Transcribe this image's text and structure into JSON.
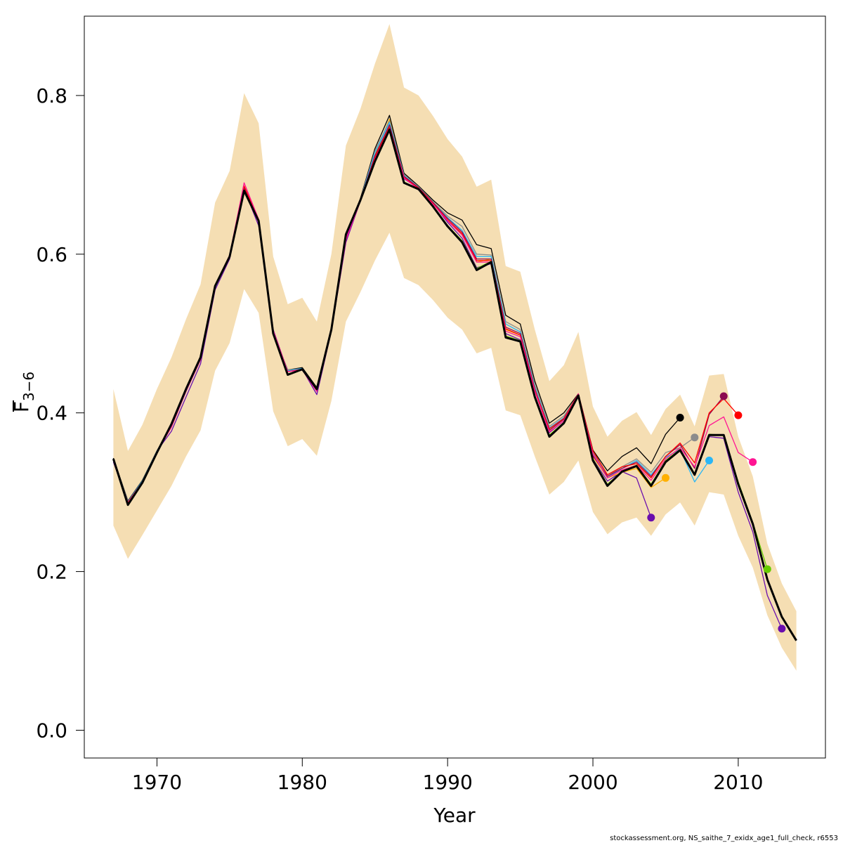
{
  "chart_data": {
    "type": "line",
    "xlabel": "Year",
    "ylabel": {
      "main": "F",
      "sub": "3−6"
    },
    "footer": "stockassessment.org, NS_saithe_7_exidx_age1_full_check, r6553",
    "xlim": [
      1965,
      2016
    ],
    "ylim": [
      -0.035,
      0.9
    ],
    "x_ticks": [
      1970,
      1980,
      1990,
      2000,
      2010
    ],
    "y_ticks": [
      0.0,
      0.2,
      0.4,
      0.6,
      0.8
    ],
    "y_tick_labels": [
      "0.0",
      "0.2",
      "0.4",
      "0.6",
      "0.8"
    ],
    "band_color": "#f5deb3",
    "years": [
      1967,
      1968,
      1969,
      1970,
      1971,
      1972,
      1973,
      1974,
      1975,
      1976,
      1977,
      1978,
      1979,
      1980,
      1981,
      1982,
      1983,
      1984,
      1985,
      1986,
      1987,
      1988,
      1989,
      1990,
      1991,
      1992,
      1993,
      1994,
      1995,
      1996,
      1997,
      1998,
      1999,
      2000,
      2001,
      2002,
      2003,
      2004,
      2005,
      2006,
      2007,
      2008,
      2009,
      2010,
      2011,
      2012,
      2013,
      2014
    ],
    "confidence_band": {
      "upper": [
        0.43,
        0.352,
        0.385,
        0.43,
        0.47,
        0.518,
        0.562,
        0.665,
        0.705,
        0.803,
        0.765,
        0.597,
        0.537,
        0.545,
        0.515,
        0.6,
        0.737,
        0.783,
        0.84,
        0.89,
        0.81,
        0.8,
        0.774,
        0.745,
        0.723,
        0.685,
        0.694,
        0.585,
        0.578,
        0.505,
        0.44,
        0.46,
        0.502,
        0.408,
        0.37,
        0.39,
        0.401,
        0.372,
        0.405,
        0.423,
        0.383,
        0.447,
        0.449,
        0.37,
        0.32,
        0.235,
        0.185,
        0.15
      ],
      "lower": [
        0.258,
        0.216,
        0.246,
        0.277,
        0.308,
        0.345,
        0.378,
        0.453,
        0.488,
        0.556,
        0.526,
        0.402,
        0.358,
        0.367,
        0.346,
        0.415,
        0.515,
        0.552,
        0.592,
        0.627,
        0.57,
        0.561,
        0.542,
        0.52,
        0.505,
        0.475,
        0.482,
        0.403,
        0.397,
        0.345,
        0.297,
        0.313,
        0.34,
        0.275,
        0.247,
        0.262,
        0.268,
        0.245,
        0.272,
        0.287,
        0.258,
        0.3,
        0.297,
        0.245,
        0.205,
        0.145,
        0.104,
        0.075
      ]
    },
    "series": [
      {
        "color": "#000000",
        "width": 3,
        "values": [
          0.342,
          0.284,
          0.312,
          0.35,
          0.386,
          0.43,
          0.47,
          0.56,
          0.597,
          0.68,
          0.642,
          0.5,
          0.448,
          0.455,
          0.43,
          0.505,
          0.625,
          0.668,
          0.717,
          0.757,
          0.69,
          0.682,
          0.66,
          0.635,
          0.615,
          0.58,
          0.59,
          0.495,
          0.49,
          0.42,
          0.37,
          0.387,
          0.422,
          0.34,
          0.308,
          0.326,
          0.333,
          0.308,
          0.338,
          0.353,
          0.322,
          0.372,
          0.372,
          0.31,
          0.26,
          0.19,
          0.143,
          0.113
        ]
      },
      {
        "color": "#6a0dad",
        "width": 1.3,
        "values": [
          0.338,
          0.287,
          0.314,
          0.352,
          0.377,
          0.42,
          0.462,
          0.555,
          0.594,
          0.682,
          0.636,
          0.505,
          0.452,
          0.455,
          0.423,
          0.503,
          0.615,
          0.667,
          0.72,
          0.76,
          0.695,
          0.683,
          0.664,
          0.64,
          0.62,
          0.583,
          0.588,
          0.5,
          0.492,
          0.428,
          0.375,
          0.39,
          0.42,
          0.342,
          0.314,
          0.326,
          0.318,
          0.268
        ]
      },
      {
        "color": "#ffb000",
        "width": 1.3,
        "values": [
          0.342,
          0.288,
          0.314,
          0.352,
          0.382,
          0.427,
          0.467,
          0.558,
          0.596,
          0.681,
          0.64,
          0.503,
          0.452,
          0.456,
          0.428,
          0.505,
          0.622,
          0.668,
          0.725,
          0.77,
          0.7,
          0.684,
          0.664,
          0.643,
          0.625,
          0.59,
          0.594,
          0.505,
          0.498,
          0.43,
          0.378,
          0.392,
          0.422,
          0.345,
          0.318,
          0.325,
          0.33,
          0.306,
          0.318
        ]
      },
      {
        "color": "#000000",
        "width": 1.3,
        "values": [
          0.343,
          0.289,
          0.315,
          0.352,
          0.384,
          0.428,
          0.468,
          0.558,
          0.597,
          0.682,
          0.642,
          0.5,
          0.454,
          0.457,
          0.432,
          0.506,
          0.623,
          0.67,
          0.733,
          0.775,
          0.702,
          0.686,
          0.668,
          0.652,
          0.643,
          0.612,
          0.607,
          0.523,
          0.512,
          0.44,
          0.387,
          0.4,
          0.424,
          0.353,
          0.327,
          0.345,
          0.356,
          0.336,
          0.373,
          0.394
        ]
      },
      {
        "color": "#8c8c8c",
        "width": 1.3,
        "values": [
          0.342,
          0.288,
          0.314,
          0.352,
          0.383,
          0.427,
          0.468,
          0.559,
          0.597,
          0.683,
          0.641,
          0.5,
          0.454,
          0.456,
          0.431,
          0.505,
          0.622,
          0.669,
          0.73,
          0.768,
          0.7,
          0.685,
          0.666,
          0.648,
          0.635,
          0.6,
          0.599,
          0.515,
          0.505,
          0.435,
          0.383,
          0.396,
          0.423,
          0.35,
          0.32,
          0.332,
          0.342,
          0.325,
          0.35,
          0.356,
          0.369
        ]
      },
      {
        "color": "#29b6f6",
        "width": 1.3,
        "values": [
          0.342,
          0.288,
          0.314,
          0.352,
          0.383,
          0.427,
          0.468,
          0.558,
          0.597,
          0.682,
          0.641,
          0.5,
          0.453,
          0.456,
          0.43,
          0.505,
          0.622,
          0.668,
          0.728,
          0.766,
          0.699,
          0.684,
          0.665,
          0.646,
          0.63,
          0.597,
          0.597,
          0.512,
          0.502,
          0.432,
          0.381,
          0.394,
          0.423,
          0.348,
          0.318,
          0.33,
          0.34,
          0.322,
          0.344,
          0.354,
          0.313,
          0.34
        ]
      },
      {
        "color": "#8b0a50",
        "width": 1.3,
        "values": [
          0.342,
          0.287,
          0.313,
          0.351,
          0.383,
          0.428,
          0.468,
          0.559,
          0.598,
          0.684,
          0.642,
          0.502,
          0.452,
          0.455,
          0.429,
          0.504,
          0.62,
          0.668,
          0.724,
          0.763,
          0.698,
          0.684,
          0.665,
          0.645,
          0.628,
          0.594,
          0.594,
          0.508,
          0.5,
          0.43,
          0.378,
          0.392,
          0.423,
          0.346,
          0.32,
          0.33,
          0.338,
          0.32,
          0.345,
          0.36,
          0.33,
          0.398,
          0.421
        ]
      },
      {
        "color": "#ff0000",
        "width": 1.3,
        "values": [
          0.342,
          0.287,
          0.313,
          0.351,
          0.383,
          0.428,
          0.468,
          0.559,
          0.598,
          0.686,
          0.643,
          0.503,
          0.452,
          0.455,
          0.429,
          0.504,
          0.62,
          0.667,
          0.722,
          0.76,
          0.697,
          0.683,
          0.664,
          0.643,
          0.626,
          0.592,
          0.592,
          0.506,
          0.498,
          0.429,
          0.38,
          0.393,
          0.424,
          0.352,
          0.322,
          0.332,
          0.336,
          0.318,
          0.345,
          0.362,
          0.337,
          0.4,
          0.418,
          0.397
        ]
      },
      {
        "color": "#ff1493",
        "width": 1.3,
        "values": [
          0.341,
          0.286,
          0.313,
          0.351,
          0.382,
          0.427,
          0.467,
          0.56,
          0.599,
          0.69,
          0.644,
          0.504,
          0.452,
          0.454,
          0.427,
          0.503,
          0.618,
          0.667,
          0.72,
          0.758,
          0.696,
          0.682,
          0.663,
          0.642,
          0.624,
          0.59,
          0.59,
          0.503,
          0.496,
          0.427,
          0.376,
          0.39,
          0.424,
          0.348,
          0.318,
          0.328,
          0.334,
          0.315,
          0.342,
          0.356,
          0.332,
          0.384,
          0.395,
          0.35,
          0.338
        ]
      },
      {
        "color": "#66cc00",
        "width": 1.3,
        "values": [
          0.342,
          0.285,
          0.313,
          0.351,
          0.385,
          0.429,
          0.469,
          0.56,
          0.597,
          0.681,
          0.642,
          0.5,
          0.449,
          0.455,
          0.43,
          0.505,
          0.624,
          0.668,
          0.718,
          0.758,
          0.691,
          0.682,
          0.661,
          0.636,
          0.617,
          0.582,
          0.591,
          0.497,
          0.491,
          0.422,
          0.372,
          0.388,
          0.422,
          0.342,
          0.31,
          0.326,
          0.334,
          0.31,
          0.34,
          0.354,
          0.323,
          0.373,
          0.372,
          0.313,
          0.262,
          0.203
        ]
      },
      {
        "color": "#6a0dad",
        "width": 1.3,
        "values": [
          0.341,
          0.285,
          0.313,
          0.351,
          0.384,
          0.428,
          0.468,
          0.559,
          0.596,
          0.68,
          0.641,
          0.5,
          0.449,
          0.454,
          0.429,
          0.504,
          0.622,
          0.667,
          0.717,
          0.757,
          0.69,
          0.681,
          0.66,
          0.635,
          0.616,
          0.581,
          0.59,
          0.496,
          0.49,
          0.421,
          0.371,
          0.387,
          0.421,
          0.341,
          0.309,
          0.325,
          0.333,
          0.309,
          0.339,
          0.353,
          0.322,
          0.37,
          0.368,
          0.3,
          0.25,
          0.17,
          0.128
        ]
      }
    ]
  }
}
